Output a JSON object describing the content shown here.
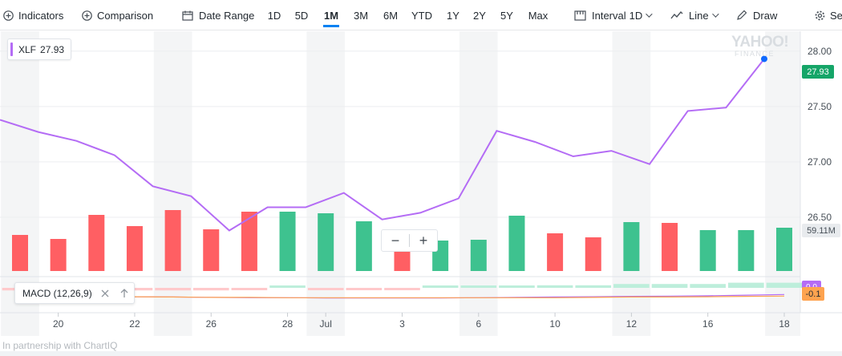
{
  "toolbar": {
    "indicators": "Indicators",
    "comparison": "Comparison",
    "date_range": "Date Range",
    "ranges": [
      "1D",
      "5D",
      "1M",
      "3M",
      "6M",
      "YTD",
      "1Y",
      "2Y",
      "5Y",
      "Max"
    ],
    "active_range": "1M",
    "interval_label": "Interval",
    "interval_value": "1D",
    "chart_style": "Line",
    "draw": "Draw",
    "settings": "Se"
  },
  "legend": {
    "symbol": "XLF",
    "value": "27.93"
  },
  "watermark": {
    "line1": "YAHOO!",
    "line2": "FINANCE"
  },
  "y_axis_labels": [
    "28.00",
    "27.50",
    "27.00",
    "26.50"
  ],
  "x_axis_labels": [
    "20",
    "22",
    "26",
    "28",
    "Jul",
    "3",
    "6",
    "10",
    "12",
    "16",
    "18"
  ],
  "price_tag": "27.93",
  "volume_tag": "59.11M",
  "macd": {
    "label": "MACD (12,26,9)",
    "tag_top": "0.0",
    "tag_bottom": "-0.1",
    "close_icon": "close-icon",
    "up_icon": "arrow-up-icon"
  },
  "zoom": {
    "minus": "−",
    "plus": "+"
  },
  "footer": "In partnership with ChartIQ",
  "colors": {
    "line": "#b46cf5",
    "up": "#3ec28f",
    "down": "#ff5f63",
    "price_tag": "#15a568",
    "macd_tag_top": "#b46cf5",
    "macd_tag_bottom": "#fea34f",
    "band": "#f4f5f6"
  },
  "chart_data": {
    "type": "line",
    "title": "",
    "series": [
      {
        "name": "XLF",
        "values": [
          27.38,
          27.27,
          27.19,
          27.06,
          26.78,
          26.69,
          26.38,
          26.59,
          26.59,
          26.72,
          26.48,
          26.54,
          26.67,
          27.28,
          27.18,
          27.05,
          27.1,
          26.98,
          27.46,
          27.49,
          27.93
        ]
      }
    ],
    "volume": [
      0.45,
      0.4,
      0.7,
      0.56,
      0.76,
      0.52,
      0.74,
      0.74,
      0.72,
      0.62,
      0.34,
      0.38,
      0.39,
      0.69,
      0.47,
      0.42,
      0.61,
      0.6,
      0.51,
      0.51,
      0.54
    ],
    "volume_direction": [
      "down",
      "down",
      "down",
      "down",
      "down",
      "down",
      "down",
      "up",
      "up",
      "up",
      "down",
      "up",
      "up",
      "up",
      "down",
      "down",
      "up",
      "down",
      "up",
      "up",
      "up"
    ],
    "macd_line": [
      -0.02,
      -0.04,
      -0.06,
      -0.07,
      -0.08,
      -0.09,
      -0.1,
      -0.1,
      -0.11,
      -0.11,
      -0.11,
      -0.11,
      -0.1,
      -0.09,
      -0.08,
      -0.07,
      -0.06,
      -0.05,
      -0.04,
      -0.02,
      0.0
    ],
    "macd_signal": [
      -0.04,
      -0.05,
      -0.06,
      -0.07,
      -0.08,
      -0.09,
      -0.09,
      -0.1,
      -0.1,
      -0.1,
      -0.1,
      -0.1,
      -0.1,
      -0.1,
      -0.1,
      -0.09,
      -0.08,
      -0.08,
      -0.07,
      -0.06,
      -0.05
    ],
    "macd_histogram": [
      -0.02,
      -0.02,
      -0.02,
      -0.02,
      -0.02,
      -0.02,
      -0.01,
      0.0,
      -0.01,
      -0.01,
      -0.01,
      0.0,
      0.0,
      0.01,
      0.02,
      0.02,
      0.03,
      0.03,
      0.03,
      0.04,
      0.04
    ],
    "ylim": [
      26.0,
      28.1
    ],
    "grid": true
  }
}
